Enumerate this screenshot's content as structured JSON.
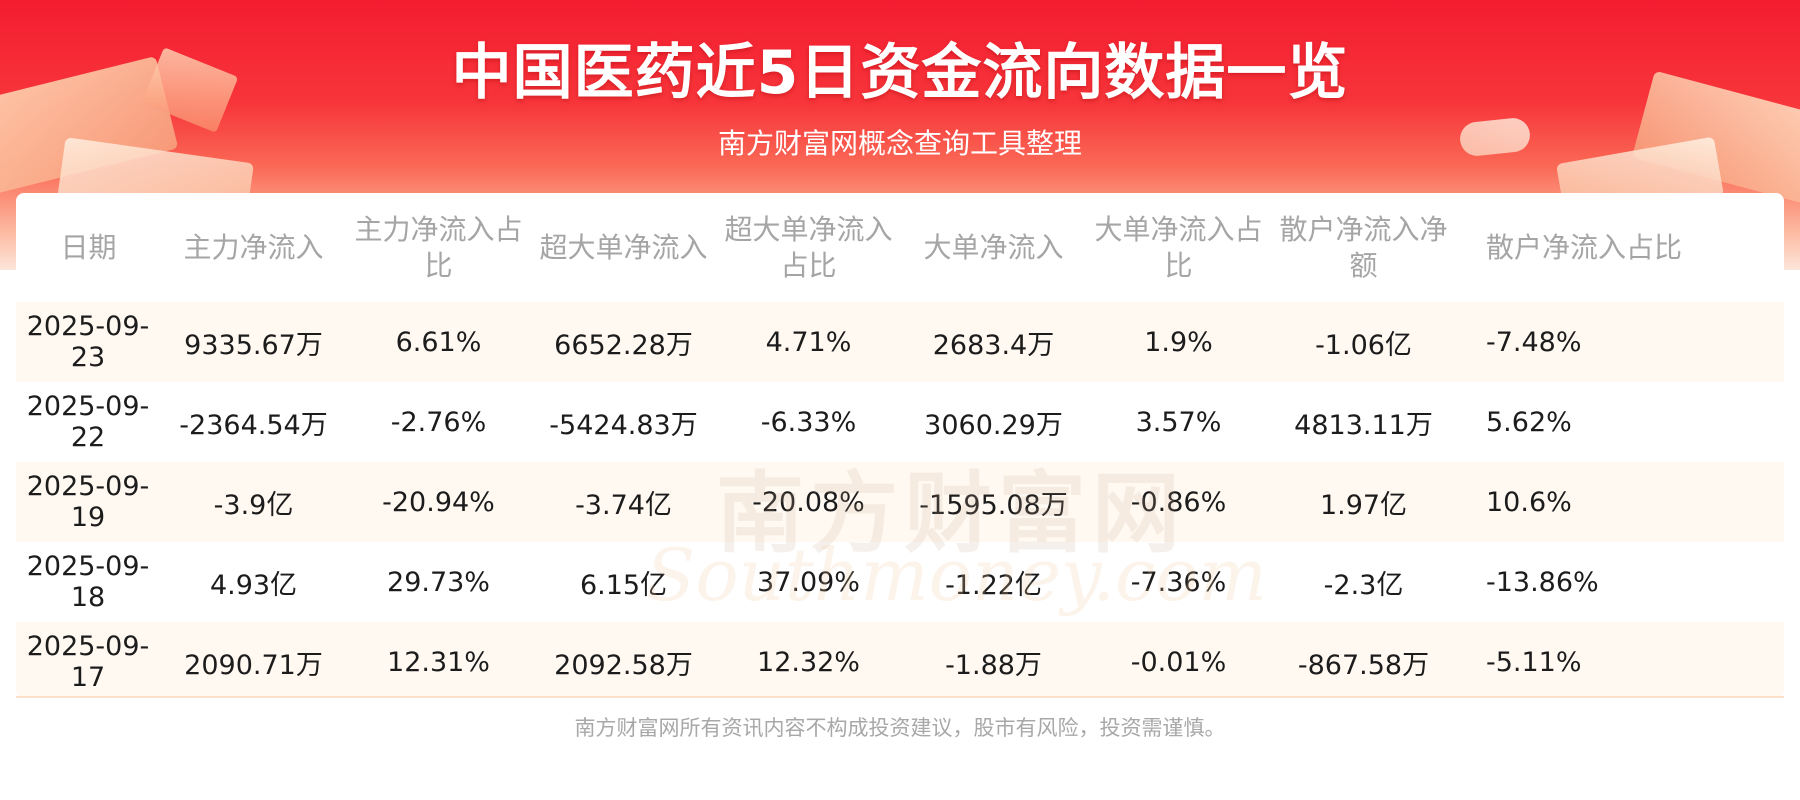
{
  "header": {
    "title": "中国医药近5日资金流向数据一览",
    "subtitle": "南方财富网概念查询工具整理"
  },
  "watermark": {
    "cn": "南方财富网",
    "en": "Southmoney.com"
  },
  "table": {
    "columns": [
      "日期",
      "主力净流入",
      "主力净流入占比",
      "超大单净流入",
      "超大单净流入占比",
      "大单净流入",
      "大单净流入占比",
      "散户净流入净额",
      "散户净流入占比"
    ],
    "rows": [
      [
        "2025-09-23",
        "9335.67万",
        "6.61%",
        "6652.28万",
        "4.71%",
        "2683.4万",
        "1.9%",
        "-1.06亿",
        "-7.48%"
      ],
      [
        "2025-09-22",
        "-2364.54万",
        "-2.76%",
        "-5424.83万",
        "-6.33%",
        "3060.29万",
        "3.57%",
        "4813.11万",
        "5.62%"
      ],
      [
        "2025-09-19",
        "-3.9亿",
        "-20.94%",
        "-3.74亿",
        "-20.08%",
        "-1595.08万",
        "-0.86%",
        "1.97亿",
        "10.6%"
      ],
      [
        "2025-09-18",
        "4.93亿",
        "29.73%",
        "6.15亿",
        "37.09%",
        "-1.22亿",
        "-7.36%",
        "-2.3亿",
        "-13.86%"
      ],
      [
        "2025-09-17",
        "2090.71万",
        "12.31%",
        "2092.58万",
        "12.32%",
        "-1.88万",
        "-0.01%",
        "-867.58万",
        "-5.11%"
      ]
    ]
  },
  "footer": {
    "disclaimer": "南方财富网所有资讯内容不构成投资建议，股市有风险，投资需谨慎。"
  },
  "colors": {
    "banner_red": "#f41c30",
    "header_text": "#a5a5a5",
    "row_alt": "#fff9f2",
    "cell_text": "#1c1c1c"
  }
}
